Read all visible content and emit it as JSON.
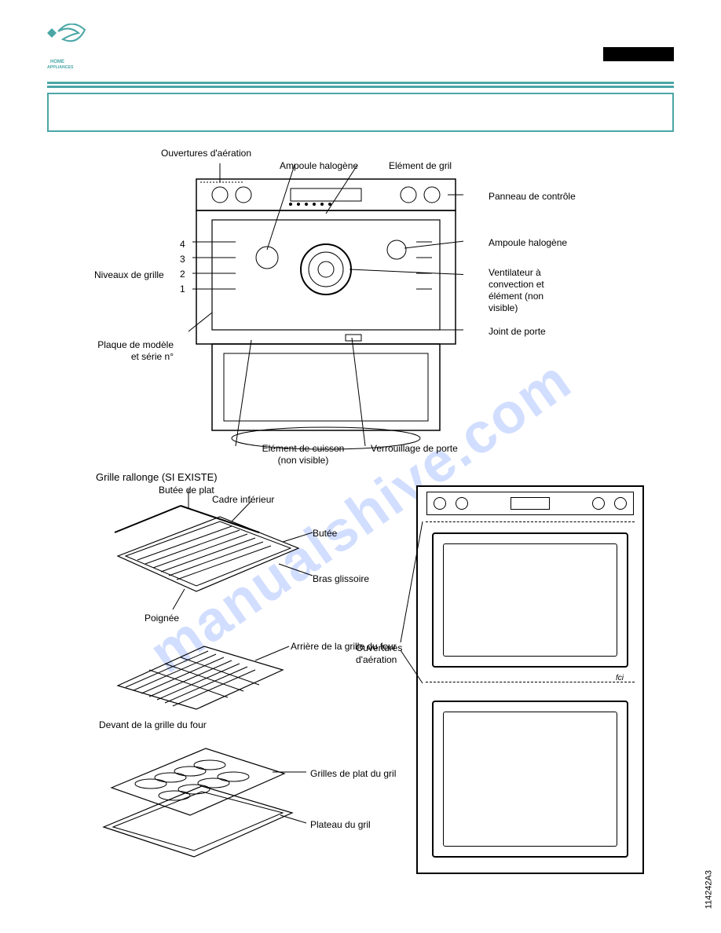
{
  "logo_text": "HOME\nAPPLIANCES",
  "watermark": "manualshive.com",
  "side_code": "114242A3",
  "main_oven": {
    "labels": {
      "ouvertures_aeration": "Ouvertures d'aération",
      "ampoule_halogene_top": "Ampoule halogène",
      "element_de_gril": "Elément de gril",
      "panneau_de_controle": "Panneau de contrôle",
      "ampoule_halogene_right": "Ampoule halogène",
      "ventilateur": "Ventilateur à\nconvection et\nélément (non\nvisible)",
      "joint_de_porte": "Joint de porte",
      "niveaux_de_grille": "Niveaux de grille",
      "rack_levels": [
        "4",
        "3",
        "2",
        "1"
      ],
      "plaque": "Plaque de modèle\net série n°",
      "element_cuisson": "Elément de cuisson\n(non visible)",
      "verrouillage": "Verrouillage de porte"
    }
  },
  "rack_section": {
    "title": "Grille rallonge (SI EXISTE)",
    "labels": {
      "butee_de_plat": "Butée de plat",
      "cadre_inferieur": "Cadre inférieur",
      "butee": "Butée",
      "bras_glissoire": "Bras glissoire",
      "poignee": "Poignée",
      "arriere_grille": "Arrière de la grille du four",
      "devant_grille": "Devant de la grille du four",
      "grilles_plat_gril": "Grilles de plat du gril",
      "plateau_gril": "Plateau du gril"
    }
  },
  "double_oven": {
    "labels": {
      "ouvertures_aeration": "Ouvertures\nd'aération"
    }
  },
  "colors": {
    "accent": "#4ba6a6",
    "watermark": "#4e7fff"
  }
}
